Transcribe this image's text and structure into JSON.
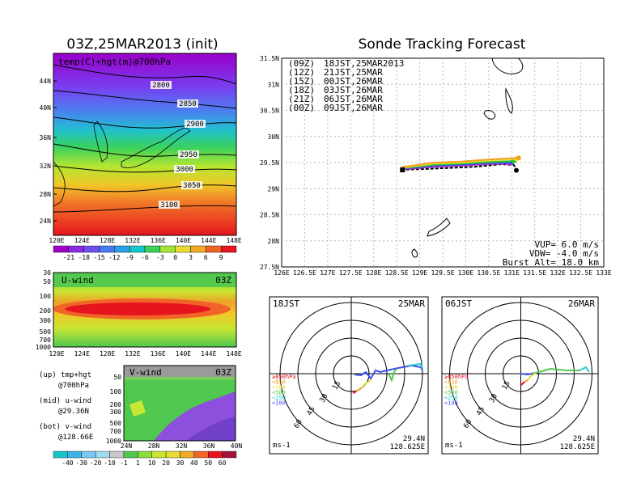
{
  "titles": {
    "left": "03Z,25MAR2013 (init)",
    "right": "Sonde Tracking Forecast"
  },
  "top_map": {
    "label": "temp(C)+hgt(m)@700hPa",
    "y_ticks": [
      "44N",
      "40N",
      "36N",
      "32N",
      "28N",
      "24N"
    ],
    "x_ticks": [
      "120E",
      "124E",
      "128E",
      "132E",
      "136E",
      "140E",
      "144E",
      "148E"
    ],
    "contours": [
      "2800",
      "2850",
      "2900",
      "2950",
      "3000",
      "3050",
      "3100"
    ],
    "colorbar": [
      "-21",
      "-18",
      "-15",
      "-12",
      "-9",
      "-6",
      "-3",
      "0",
      "3",
      "6",
      "9"
    ],
    "colorbar_colors": [
      "#a000c8",
      "#8c28e6",
      "#6e50f0",
      "#4a78f0",
      "#2aa0e6",
      "#14c8c8",
      "#3cd25a",
      "#a0e632",
      "#e6dc32",
      "#f0aa28",
      "#f06428",
      "#e6141e"
    ]
  },
  "u_wind": {
    "title": "U-wind",
    "time": "03Z",
    "y_ticks": [
      "30",
      "50",
      "100",
      "200",
      "300",
      "500",
      "700",
      "1000"
    ],
    "x_ticks": [
      "120E",
      "124E",
      "128E",
      "132E",
      "136E",
      "140E",
      "144E",
      "148E"
    ]
  },
  "v_wind": {
    "title": "V-wind",
    "time": "03Z",
    "y_ticks": [
      "50",
      "100",
      "200",
      "300",
      "500",
      "700",
      "1000"
    ],
    "x_ticks": [
      "24N",
      "28N",
      "32N",
      "36N",
      "40N"
    ],
    "colorbar": [
      "-40",
      "-30",
      "-20",
      "-10",
      "-1",
      "1",
      "10",
      "20",
      "30",
      "40",
      "50",
      "60"
    ],
    "colorbar_colors": [
      "#14c8c8",
      "#3cb4e6",
      "#78c8f0",
      "#a0dcf0",
      "#c8c8c8",
      "#50c850",
      "#8cdc3c",
      "#c8e632",
      "#e6dc32",
      "#f0aa28",
      "#f06428",
      "#e6141e",
      "#a0143c"
    ]
  },
  "notes": [
    [
      "(up) tmp+hgt",
      "@700hPa"
    ],
    [
      "(mid) u-wind",
      "@29.36N"
    ],
    [
      "(bot) v-wind",
      "@128.66E"
    ]
  ],
  "track_map": {
    "y_ticks": [
      "31.5N",
      "31N",
      "30.5N",
      "30N",
      "29.5N",
      "29N",
      "28.5N",
      "28N",
      "27.5N"
    ],
    "x_ticks": [
      "126E",
      "126.5E",
      "127E",
      "127.5E",
      "128E",
      "128.5E",
      "129E",
      "129.5E",
      "130E",
      "130.5E",
      "131E",
      "131.5E",
      "132E",
      "132.5E",
      "133E"
    ],
    "legend": [
      {
        "utc": "(09Z)",
        "jst": "18JST,25MAR2013",
        "color": "#000000"
      },
      {
        "utc": "(12Z)",
        "jst": "21JST,25MAR",
        "color": "#b428c8"
      },
      {
        "utc": "(15Z)",
        "jst": "00JST,26MAR",
        "color": "#3c50f0"
      },
      {
        "utc": "(18Z)",
        "jst": "03JST,26MAR",
        "color": "#28c828"
      },
      {
        "utc": "(21Z)",
        "jst": "06JST,26MAR",
        "color": "#f0dc28"
      },
      {
        "utc": "(00Z)",
        "jst": "09JST,26MAR",
        "color": "#f0a028"
      }
    ],
    "params": [
      "VUP= 6.0 m/s",
      "VDW= -4.0 m/s",
      "Burst Alt= 18.0 km"
    ]
  },
  "hodographs": [
    {
      "time": "18JST",
      "date": "25MAR",
      "lat": "29.4N",
      "lon": "128.625E",
      "unit": "ms-1"
    },
    {
      "time": "06JST",
      "date": "26MAR",
      "lat": "29.4N",
      "lon": "128.625E",
      "unit": "ms-1"
    }
  ],
  "hodo_rings": [
    "15",
    "30",
    "45",
    "60"
  ],
  "hodo_legend": [
    {
      "text": "≥850hPa",
      "color": "#e6141e"
    },
    {
      "text": "<850",
      "color": "#f0a028"
    },
    {
      "text": "<700",
      "color": "#e6dc32"
    },
    {
      "text": "<500",
      "color": "#50c850"
    },
    {
      "text": "<250",
      "color": "#28c8c8"
    },
    {
      "text": "<100",
      "color": "#3c50f0"
    }
  ],
  "chart_data": {
    "type": "line",
    "title": "Sonde Tracking Forecast",
    "xlim": [
      126,
      133
    ],
    "ylim": [
      27.5,
      31.5
    ],
    "launch": {
      "lon": 128.625,
      "lat": 29.36
    },
    "series": [
      {
        "name": "(09Z) 18JST,25MAR2013",
        "color": "#000000",
        "points": [
          [
            128.6,
            29.36
          ],
          [
            129.2,
            29.38
          ],
          [
            129.7,
            29.4
          ],
          [
            130.2,
            29.42
          ],
          [
            130.8,
            29.47
          ],
          [
            131.05,
            29.45
          ],
          [
            131.1,
            29.35
          ]
        ]
      },
      {
        "name": "(12Z) 21JST,25MAR",
        "color": "#b428c8",
        "points": [
          [
            128.6,
            29.37
          ],
          [
            129.3,
            29.42
          ],
          [
            129.9,
            29.44
          ],
          [
            130.5,
            29.47
          ],
          [
            130.95,
            29.48
          ]
        ]
      },
      {
        "name": "(15Z) 00JST,26MAR",
        "color": "#3c50f0",
        "points": [
          [
            128.6,
            29.38
          ],
          [
            129.3,
            29.44
          ],
          [
            129.9,
            29.46
          ],
          [
            130.5,
            29.49
          ],
          [
            131.0,
            29.5
          ]
        ]
      },
      {
        "name": "(18Z) 03JST,26MAR",
        "color": "#28c828",
        "points": [
          [
            128.6,
            29.39
          ],
          [
            129.3,
            29.46
          ],
          [
            129.9,
            29.48
          ],
          [
            130.5,
            29.51
          ],
          [
            131.05,
            29.53
          ]
        ]
      },
      {
        "name": "(21Z) 06JST,26MAR",
        "color": "#f0dc28",
        "points": [
          [
            128.6,
            29.4
          ],
          [
            129.3,
            29.48
          ],
          [
            129.9,
            29.5
          ],
          [
            130.5,
            29.54
          ],
          [
            131.1,
            29.57
          ]
        ]
      },
      {
        "name": "(00Z) 09JST,26MAR",
        "color": "#f0a028",
        "points": [
          [
            128.6,
            29.41
          ],
          [
            129.3,
            29.5
          ],
          [
            129.9,
            29.52
          ],
          [
            130.5,
            29.56
          ],
          [
            131.15,
            29.59
          ]
        ]
      }
    ],
    "grid": true
  }
}
